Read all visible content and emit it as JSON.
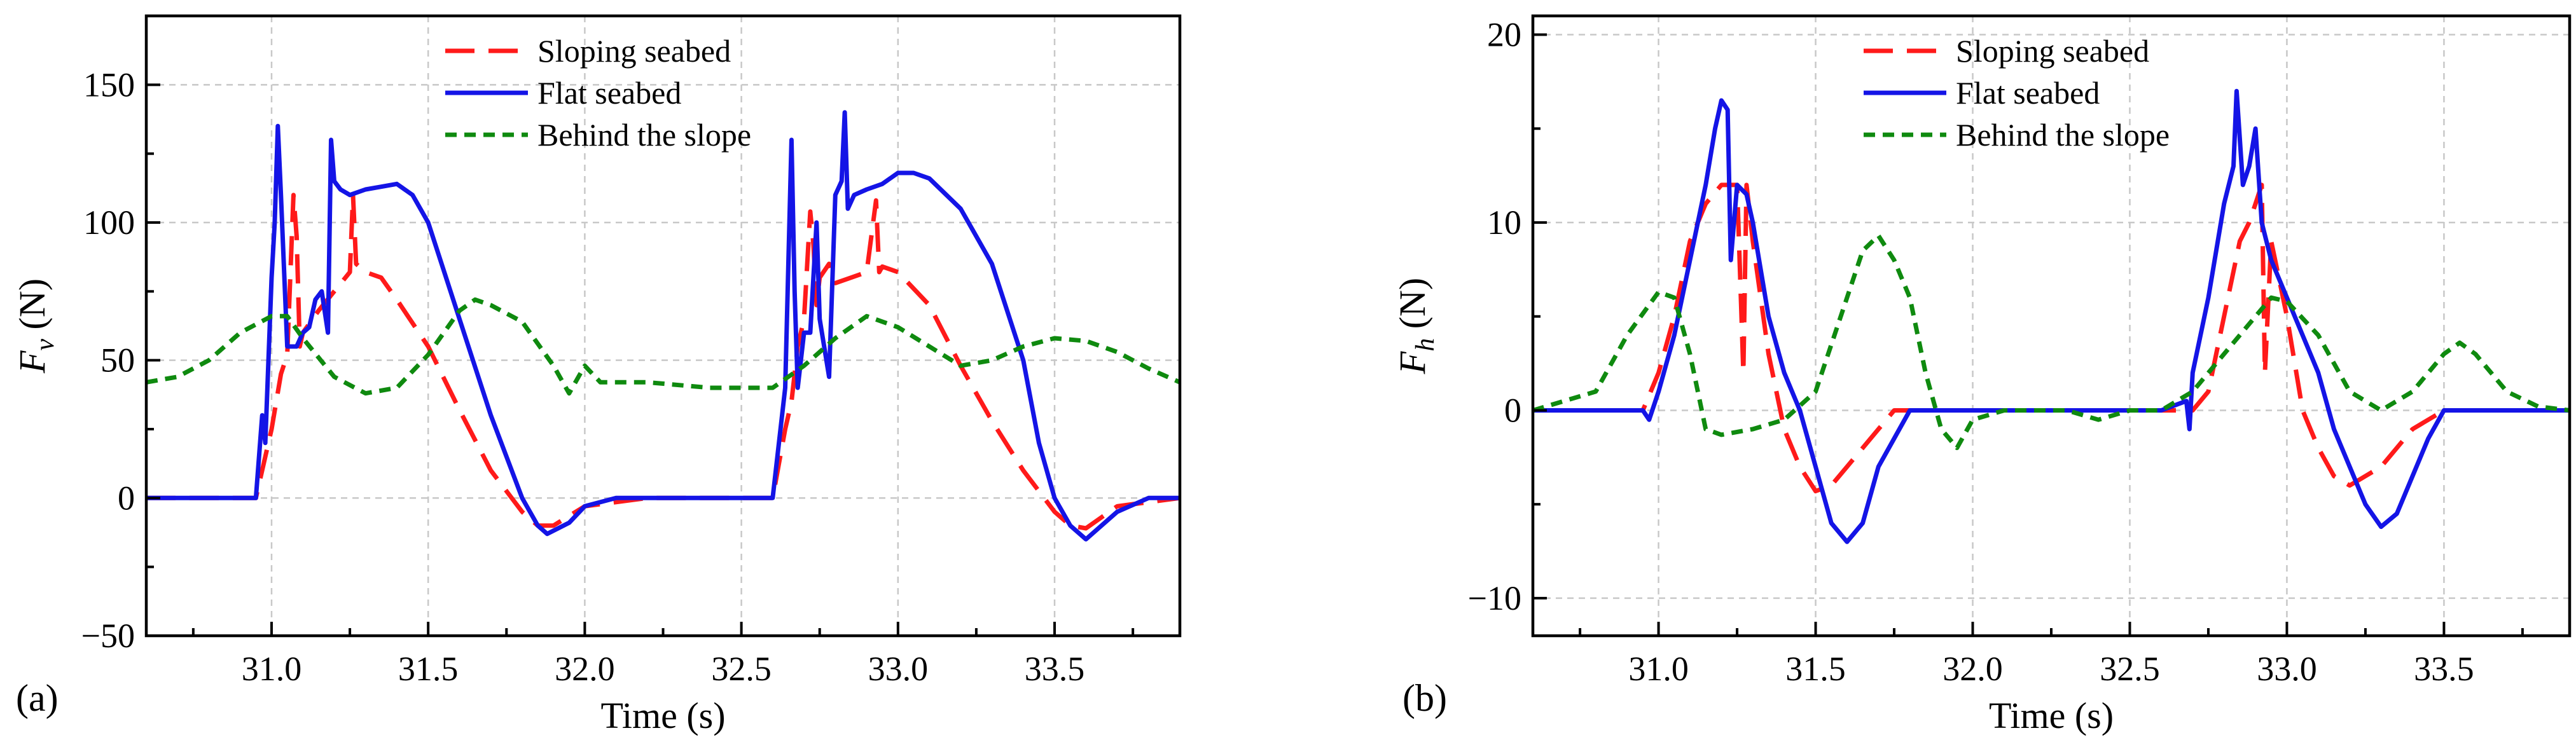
{
  "chart_data": [
    {
      "type": "line",
      "panel_label": "(a)",
      "xlabel": "Time (s)",
      "ylabel": {
        "symbol": "F",
        "subscript": "v",
        "unit": "(N)"
      },
      "xlim": [
        30.6,
        33.9
      ],
      "ylim": [
        -50,
        175
      ],
      "xticks": [
        31.0,
        31.5,
        32.0,
        32.5,
        33.0,
        33.5
      ],
      "xtick_labels": [
        "31.0",
        "31.5",
        "32.0",
        "32.5",
        "33.0",
        "33.5"
      ],
      "yticks": [
        -50,
        0,
        50,
        100,
        150
      ],
      "ytick_labels": [
        "−50",
        "0",
        "50",
        "100",
        "150"
      ],
      "grid": true,
      "legend_position": "top-center",
      "series": [
        {
          "name": "Sloping seabed",
          "color": "#ff1a1a",
          "style": "dashed",
          "x": [
            30.6,
            30.95,
            30.98,
            31.0,
            31.03,
            31.05,
            31.07,
            31.08,
            31.09,
            31.1,
            31.15,
            31.2,
            31.25,
            31.26,
            31.27,
            31.3,
            31.35,
            31.4,
            31.5,
            31.6,
            31.7,
            31.8,
            31.85,
            31.9,
            32.0,
            32.2,
            32.6,
            32.64,
            32.66,
            32.68,
            32.7,
            32.72,
            32.73,
            32.74,
            32.75,
            32.78,
            32.8,
            32.85,
            32.9,
            32.93,
            32.94,
            32.95,
            33.0,
            33.1,
            33.2,
            33.3,
            33.4,
            33.5,
            33.55,
            33.6,
            33.7,
            33.9
          ],
          "y": [
            0,
            0,
            15,
            25,
            45,
            52,
            110,
            95,
            55,
            60,
            68,
            75,
            82,
            110,
            85,
            82,
            80,
            72,
            55,
            32,
            10,
            -5,
            -10,
            -10,
            -3,
            0,
            0,
            25,
            35,
            55,
            65,
            104,
            92,
            70,
            80,
            85,
            78,
            80,
            82,
            108,
            82,
            84,
            82,
            70,
            48,
            28,
            10,
            -5,
            -10,
            -11,
            -3,
            0
          ]
        },
        {
          "name": "Flat seabed",
          "color": "#1414e6",
          "style": "solid",
          "x": [
            30.6,
            30.95,
            30.97,
            30.98,
            31.0,
            31.01,
            31.02,
            31.03,
            31.05,
            31.08,
            31.1,
            31.12,
            31.14,
            31.16,
            31.18,
            31.19,
            31.2,
            31.22,
            31.25,
            31.3,
            31.35,
            31.4,
            31.45,
            31.5,
            31.6,
            31.7,
            31.8,
            31.85,
            31.88,
            31.95,
            32.0,
            32.1,
            32.6,
            32.64,
            32.66,
            32.67,
            32.68,
            32.7,
            32.72,
            32.74,
            32.75,
            32.78,
            32.8,
            32.82,
            32.83,
            32.84,
            32.86,
            32.9,
            32.95,
            33.0,
            33.05,
            33.1,
            33.2,
            33.3,
            33.4,
            33.45,
            33.5,
            33.55,
            33.6,
            33.7,
            33.8,
            33.9
          ],
          "y": [
            0,
            0,
            30,
            20,
            80,
            100,
            135,
            110,
            55,
            55,
            60,
            62,
            72,
            75,
            60,
            130,
            115,
            112,
            110,
            112,
            113,
            114,
            110,
            100,
            65,
            30,
            0,
            -10,
            -13,
            -9,
            -3,
            0,
            0,
            40,
            130,
            75,
            40,
            60,
            60,
            100,
            65,
            44,
            110,
            115,
            140,
            105,
            110,
            112,
            114,
            118,
            118,
            116,
            105,
            85,
            50,
            20,
            0,
            -10,
            -15,
            -5,
            0,
            0
          ]
        },
        {
          "name": "Behind the slope",
          "color": "#0f8a0f",
          "style": "dotted",
          "x": [
            30.6,
            30.7,
            30.8,
            30.9,
            31.0,
            31.05,
            31.1,
            31.2,
            31.3,
            31.4,
            31.5,
            31.6,
            31.65,
            31.7,
            31.8,
            31.9,
            31.95,
            32.0,
            32.05,
            32.2,
            32.4,
            32.6,
            32.7,
            32.8,
            32.9,
            33.0,
            33.1,
            33.2,
            33.3,
            33.4,
            33.5,
            33.6,
            33.7,
            33.8,
            33.9
          ],
          "y": [
            42,
            44,
            50,
            60,
            66,
            66,
            58,
            44,
            38,
            40,
            52,
            68,
            72,
            70,
            64,
            48,
            38,
            48,
            42,
            42,
            40,
            40,
            48,
            58,
            66,
            62,
            55,
            48,
            50,
            55,
            58,
            57,
            53,
            47,
            42
          ]
        }
      ]
    },
    {
      "type": "line",
      "panel_label": "(b)",
      "xlabel": "Time (s)",
      "ylabel": {
        "symbol": "F",
        "subscript": "h",
        "unit": "(N)"
      },
      "xlim": [
        30.6,
        33.9
      ],
      "ylim": [
        -12,
        21
      ],
      "xticks": [
        31.0,
        31.5,
        32.0,
        32.5,
        33.0,
        33.5
      ],
      "xtick_labels": [
        "31.0",
        "31.5",
        "32.0",
        "32.5",
        "33.0",
        "33.5"
      ],
      "yticks": [
        -10,
        0,
        10,
        20
      ],
      "ytick_labels": [
        "−10",
        "0",
        "10",
        "20"
      ],
      "grid": true,
      "legend_position": "top-center",
      "series": [
        {
          "name": "Sloping seabed",
          "color": "#ff1a1a",
          "style": "dashed",
          "x": [
            30.6,
            30.95,
            31.0,
            31.05,
            31.1,
            31.15,
            31.2,
            31.25,
            31.27,
            31.28,
            31.3,
            31.35,
            31.4,
            31.45,
            31.5,
            31.55,
            31.6,
            31.7,
            31.75,
            31.8,
            32.6,
            32.7,
            32.75,
            32.8,
            32.85,
            32.88,
            32.9,
            32.92,
            32.93,
            32.95,
            33.0,
            33.05,
            33.1,
            33.15,
            33.2,
            33.25,
            33.3,
            33.4,
            33.5,
            33.9
          ],
          "y": [
            0,
            0,
            2,
            5,
            9,
            11,
            12,
            12,
            2,
            12,
            9,
            3,
            -1,
            -3,
            -4.3,
            -4,
            -3,
            -1,
            0,
            0,
            0,
            0,
            1,
            5,
            9,
            10,
            11,
            12,
            2,
            9,
            5,
            0,
            -2,
            -3.5,
            -4,
            -3.5,
            -3,
            -1,
            0,
            0
          ]
        },
        {
          "name": "Flat seabed",
          "color": "#1414e6",
          "style": "solid",
          "x": [
            30.6,
            30.95,
            30.97,
            31.0,
            31.05,
            31.1,
            31.15,
            31.18,
            31.2,
            31.22,
            31.23,
            31.25,
            31.28,
            31.3,
            31.35,
            31.4,
            31.45,
            31.5,
            31.55,
            31.6,
            31.65,
            31.7,
            31.8,
            32.6,
            32.68,
            32.69,
            32.7,
            32.75,
            32.8,
            32.83,
            32.84,
            32.86,
            32.88,
            32.9,
            32.92,
            32.95,
            33.0,
            33.05,
            33.1,
            33.15,
            33.2,
            33.25,
            33.3,
            33.35,
            33.4,
            33.45,
            33.5,
            33.9
          ],
          "y": [
            0,
            0,
            -0.5,
            1,
            4,
            8,
            12,
            15,
            16.5,
            16,
            8,
            12,
            11.5,
            10,
            5,
            2,
            0,
            -3,
            -6,
            -7,
            -6,
            -3,
            0,
            0,
            0.5,
            -1,
            2,
            6,
            11,
            13,
            17,
            12,
            13,
            15,
            10,
            8,
            6,
            4,
            2,
            -1,
            -3,
            -5,
            -6.2,
            -5.5,
            -3.5,
            -1.5,
            0,
            0
          ]
        },
        {
          "name": "Behind the slope",
          "color": "#0f8a0f",
          "style": "dotted",
          "x": [
            30.6,
            30.8,
            30.9,
            31.0,
            31.05,
            31.1,
            31.15,
            31.2,
            31.3,
            31.4,
            31.5,
            31.6,
            31.65,
            31.7,
            31.75,
            31.8,
            31.85,
            31.9,
            31.95,
            32.0,
            32.1,
            32.3,
            32.4,
            32.5,
            32.6,
            32.7,
            32.8,
            32.9,
            32.95,
            33.0,
            33.1,
            33.2,
            33.3,
            33.4,
            33.5,
            33.55,
            33.6,
            33.7,
            33.8,
            33.9
          ],
          "y": [
            0,
            1,
            4,
            6.3,
            6,
            3,
            -1,
            -1.3,
            -1,
            -0.5,
            1,
            6,
            8.5,
            9.3,
            8,
            6,
            2,
            -1,
            -2,
            -0.5,
            0,
            0,
            -0.5,
            0,
            0,
            1,
            3,
            5,
            6,
            5.8,
            4,
            1,
            0,
            1,
            3,
            3.6,
            3,
            1,
            0.2,
            0
          ]
        }
      ]
    }
  ]
}
